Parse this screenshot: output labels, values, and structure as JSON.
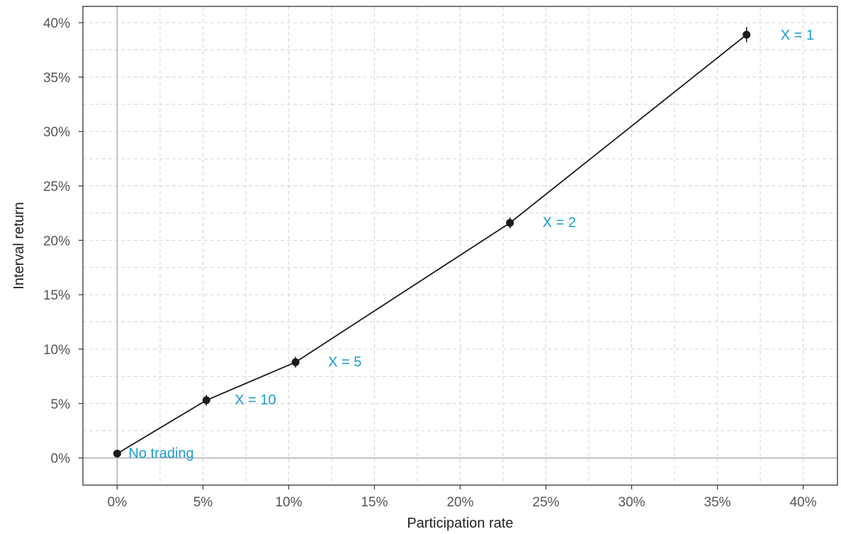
{
  "chart_data": {
    "type": "line",
    "title": "",
    "xlabel": "Participation rate",
    "ylabel": "Interval return",
    "xlim": [
      -0.02,
      0.42
    ],
    "ylim": [
      -0.025,
      0.415
    ],
    "x_ticks": [
      0,
      0.05,
      0.1,
      0.15,
      0.2,
      0.25,
      0.3,
      0.35,
      0.4
    ],
    "x_tick_labels": [
      "0%",
      "5%",
      "10%",
      "15%",
      "20%",
      "25%",
      "30%",
      "35%",
      "40%"
    ],
    "y_ticks": [
      0,
      0.05,
      0.1,
      0.15,
      0.2,
      0.25,
      0.3,
      0.35,
      0.4
    ],
    "y_tick_labels": [
      "0%",
      "5%",
      "10%",
      "15%",
      "20%",
      "25%",
      "30%",
      "35%",
      "40%"
    ],
    "grid": true,
    "grid_style": "dashed",
    "series": [
      {
        "points": [
          {
            "x": 0.0,
            "y": 0.004,
            "err": 0.003,
            "label": "No trading"
          },
          {
            "x": 0.052,
            "y": 0.053,
            "err": 0.005,
            "label": "X = 10"
          },
          {
            "x": 0.104,
            "y": 0.088,
            "err": 0.005,
            "label": "X = 5"
          },
          {
            "x": 0.229,
            "y": 0.216,
            "err": 0.005,
            "label": "X = 2"
          },
          {
            "x": 0.367,
            "y": 0.389,
            "err": 0.007,
            "label": "X = 1"
          }
        ]
      }
    ],
    "colors": {
      "line": "#1a1a1a",
      "marker": "#1a1a1a",
      "annotation": "#1a9bd1",
      "grid": "#d4d4d4",
      "zero_line": "#b0b0b0",
      "frame": "#333333"
    }
  }
}
